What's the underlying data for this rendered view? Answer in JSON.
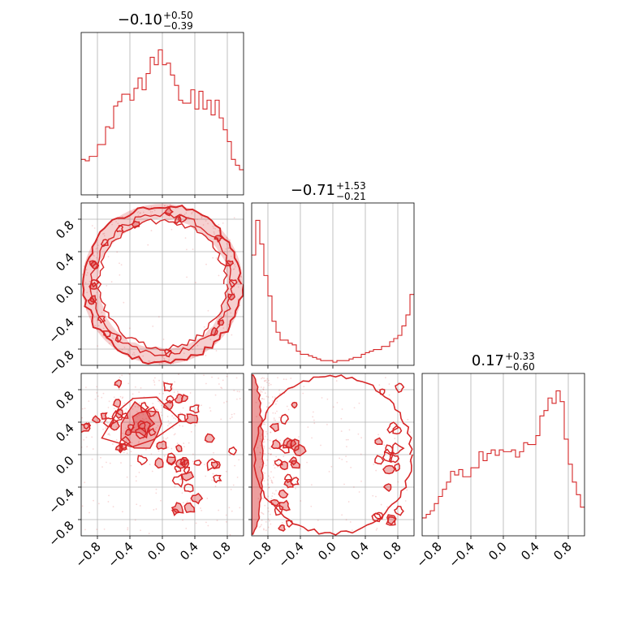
{
  "chart_data": {
    "type": "corner",
    "color": "#d62728",
    "grid": true,
    "axis_range": [
      -1.0,
      1.0
    ],
    "tick_labels": [
      "−0.8",
      "−0.4",
      "0.0",
      "0.4",
      "0.8"
    ],
    "tick_values": [
      -0.8,
      -0.4,
      0.0,
      0.4,
      0.8
    ],
    "titles": [
      {
        "value": "−0.10",
        "plus": "+0.50",
        "minus": "−0.39"
      },
      {
        "value": "−0.71",
        "plus": "+1.53",
        "minus": "−0.21"
      },
      {
        "value": "0.17",
        "plus": "+0.33",
        "minus": "−0.60"
      }
    ],
    "hist_bins": 40,
    "histograms": [
      {
        "name": "",
        "counts": [
          24,
          23,
          26,
          26,
          34,
          34,
          46,
          45,
          60,
          63,
          68,
          68,
          64,
          72,
          79,
          71,
          82,
          93,
          88,
          98,
          88,
          89,
          81,
          74,
          64,
          62,
          62,
          71,
          58,
          70,
          58,
          64,
          54,
          64,
          52,
          44,
          36,
          24,
          20,
          17
        ]
      },
      {
        "name": "",
        "counts": [
          70,
          92,
          77,
          57,
          44,
          28,
          21,
          16,
          16,
          14,
          13,
          9,
          7,
          7,
          6,
          5,
          4,
          3,
          3,
          3,
          2,
          3,
          3,
          3,
          4,
          5,
          5,
          7,
          8,
          9,
          10,
          10,
          12,
          12,
          15,
          17,
          19,
          25,
          32,
          45
        ]
      },
      {
        "name": "",
        "counts": [
          10,
          12,
          14,
          18,
          22,
          26,
          30,
          36,
          34,
          37,
          33,
          33,
          38,
          38,
          47,
          42,
          46,
          48,
          45,
          48,
          47,
          47,
          48,
          44,
          47,
          52,
          51,
          51,
          56,
          67,
          70,
          77,
          74,
          81,
          75,
          54,
          40,
          30,
          23,
          16
        ]
      }
    ],
    "contour_levels": [
      0.39,
      0.86
    ],
    "panels_2d": [
      {
        "row": 1,
        "col": 0,
        "note": "ring-shaped density of radius ≈ 1 in the (x0, x1) plane"
      },
      {
        "row": 2,
        "col": 0,
        "note": "dense cluster near (−0.25, 0.40) with diffuse contours across the panel"
      },
      {
        "row": 2,
        "col": 1,
        "note": "dense band along x1 = −1 with scattered contours near x1 = +0.9"
      }
    ]
  }
}
